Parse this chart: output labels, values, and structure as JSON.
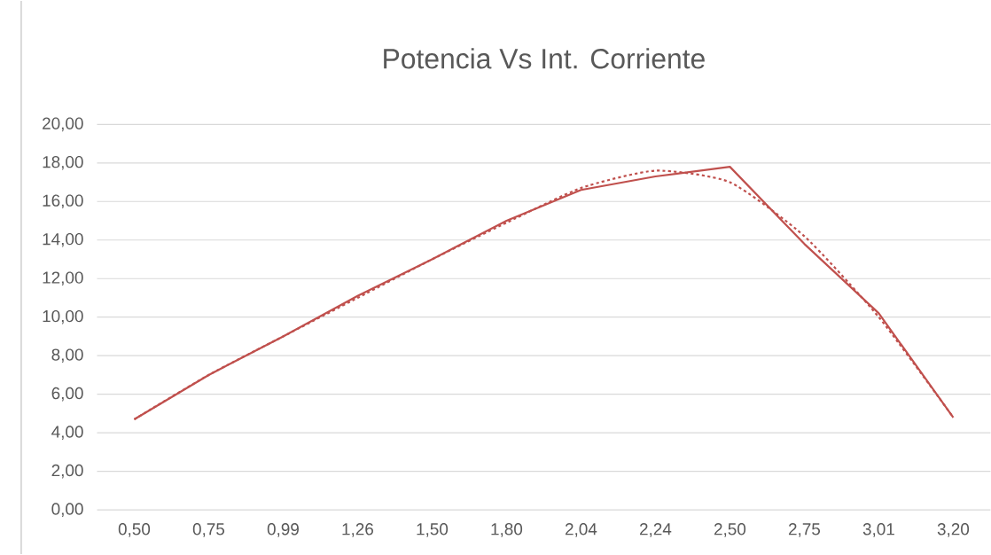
{
  "chart_data": {
    "type": "line",
    "title": "Potencia Vs Int. Corriente",
    "categories": [
      "0,50",
      "0,75",
      "0,99",
      "1,26",
      "1,50",
      "1,80",
      "2,04",
      "2,24",
      "2,50",
      "2,75",
      "3,01",
      "3,20"
    ],
    "series": [
      {
        "color": "#c0504d",
        "line_style": "solid",
        "values": [
          4.7,
          7.0,
          9.0,
          11.1,
          13.0,
          15.0,
          16.6,
          17.3,
          17.8,
          13.8,
          10.2,
          4.8
        ]
      },
      {
        "type": "line",
        "color": "#c0504d",
        "line_style": "dotted",
        "values": [
          4.7,
          7.0,
          9.0,
          11.0,
          13.0,
          14.9,
          16.7,
          17.6,
          17.0,
          14.2,
          10.0,
          4.8
        ]
      }
    ],
    "ylim": [
      0,
      20
    ],
    "yticks": [
      {
        "value": 0,
        "label": "0,00"
      },
      {
        "value": 2,
        "label": "2,00"
      },
      {
        "value": 4,
        "label": "4,00"
      },
      {
        "value": 6,
        "label": "6,00"
      },
      {
        "value": 8,
        "label": "8,00"
      },
      {
        "value": 10,
        "label": "10,00"
      },
      {
        "value": 12,
        "label": "12,00"
      },
      {
        "value": 14,
        "label": "14,00"
      },
      {
        "value": 16,
        "label": "16,00"
      },
      {
        "value": 18,
        "label": "18,00"
      },
      {
        "value": 20,
        "label": "20,00"
      }
    ],
    "grid": "y"
  }
}
